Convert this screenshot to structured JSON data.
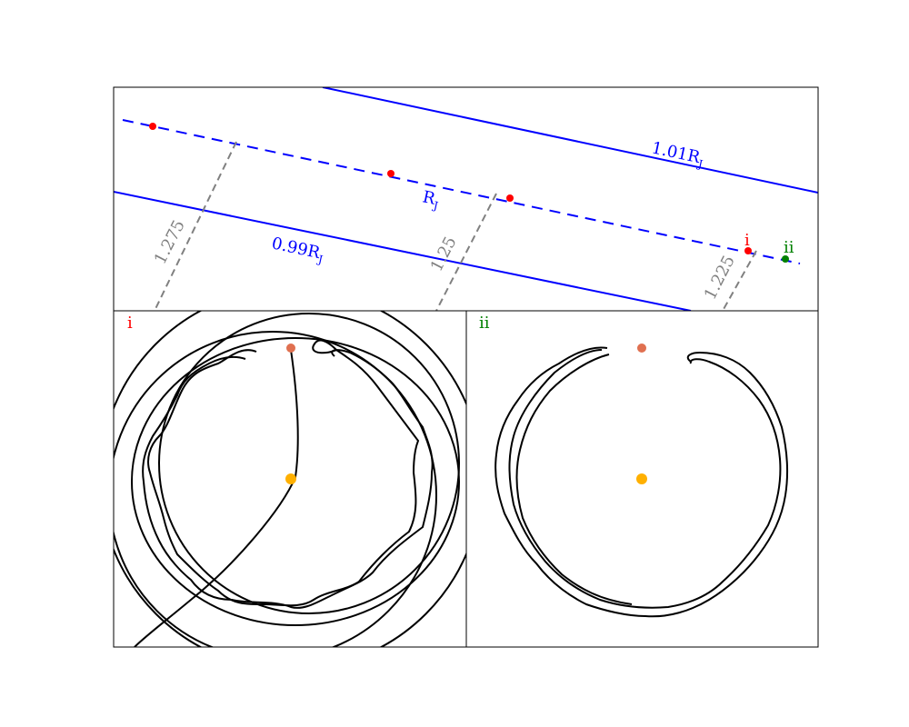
{
  "chart_data": [
    {
      "type": "line",
      "panel": "top",
      "series": [
        {
          "name": "1.01R_J",
          "values": "upper boundary line"
        },
        {
          "name": "R_J",
          "values": "centre dashed line"
        },
        {
          "name": "0.99R_J",
          "values": "lower boundary line"
        }
      ],
      "labels": {
        "outer": {
          "main": "1.01R",
          "sub": "J"
        },
        "centre": {
          "main": "R",
          "sub": "J"
        },
        "inner": {
          "main": "0.99R",
          "sub": "J"
        }
      },
      "contours": [
        "1.275",
        "1.25",
        "1.225"
      ],
      "markers": [
        "i",
        "ii"
      ],
      "colors": {
        "line": "#0000ff",
        "contour": "#808080",
        "marker_i": "#ff0000",
        "marker_ii": "#008000"
      }
    },
    {
      "type": "line",
      "panel": "i",
      "label": "i",
      "colors": {
        "orbit": "#000000",
        "planet": "#ffb000",
        "moon": "#e07050"
      }
    },
    {
      "type": "line",
      "panel": "ii",
      "label": "ii",
      "colors": {
        "orbit": "#000000",
        "planet": "#ffb000",
        "moon": "#e07050"
      }
    }
  ]
}
